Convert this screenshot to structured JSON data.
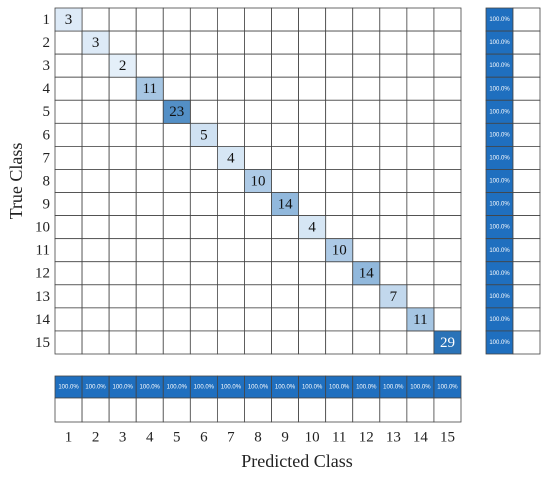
{
  "chart_data": {
    "type": "confusion_matrix",
    "x_label": "Predicted Class",
    "y_label": "True Class",
    "categories": [
      "1",
      "2",
      "3",
      "4",
      "5",
      "6",
      "7",
      "8",
      "9",
      "10",
      "11",
      "12",
      "13",
      "14",
      "15"
    ],
    "values": [
      3,
      3,
      2,
      11,
      23,
      5,
      4,
      10,
      14,
      4,
      10,
      14,
      7,
      11,
      29
    ],
    "colors": [
      "#e4eff9",
      "#2a73b8"
    ],
    "row_summary": {
      "color": "#1f6fbf",
      "values": [
        100,
        100,
        100,
        100,
        100,
        100,
        100,
        100,
        100,
        100,
        100,
        100,
        100,
        100,
        100
      ],
      "value_labels": [
        "100.0%",
        "100.0%",
        "100.0%",
        "100.0%",
        "100.0%",
        "100.0%",
        "100.0%",
        "100.0%",
        "100.0%",
        "100.0%",
        "100.0%",
        "100.0%",
        "100.0%",
        "100.0%",
        "100.0%"
      ]
    },
    "column_summary": {
      "color": "#1f6fbf",
      "values": [
        100,
        100,
        100,
        100,
        100,
        100,
        100,
        100,
        100,
        100,
        100,
        100,
        100,
        100,
        100
      ],
      "value_labels": [
        "100.0%",
        "100.0%",
        "100.0%",
        "100.0%",
        "100.0%",
        "100.0%",
        "100.0%",
        "100.0%",
        "100.0%",
        "100.0%",
        "100.0%",
        "100.0%",
        "100.0%",
        "100.0%",
        "100.0%"
      ]
    }
  }
}
